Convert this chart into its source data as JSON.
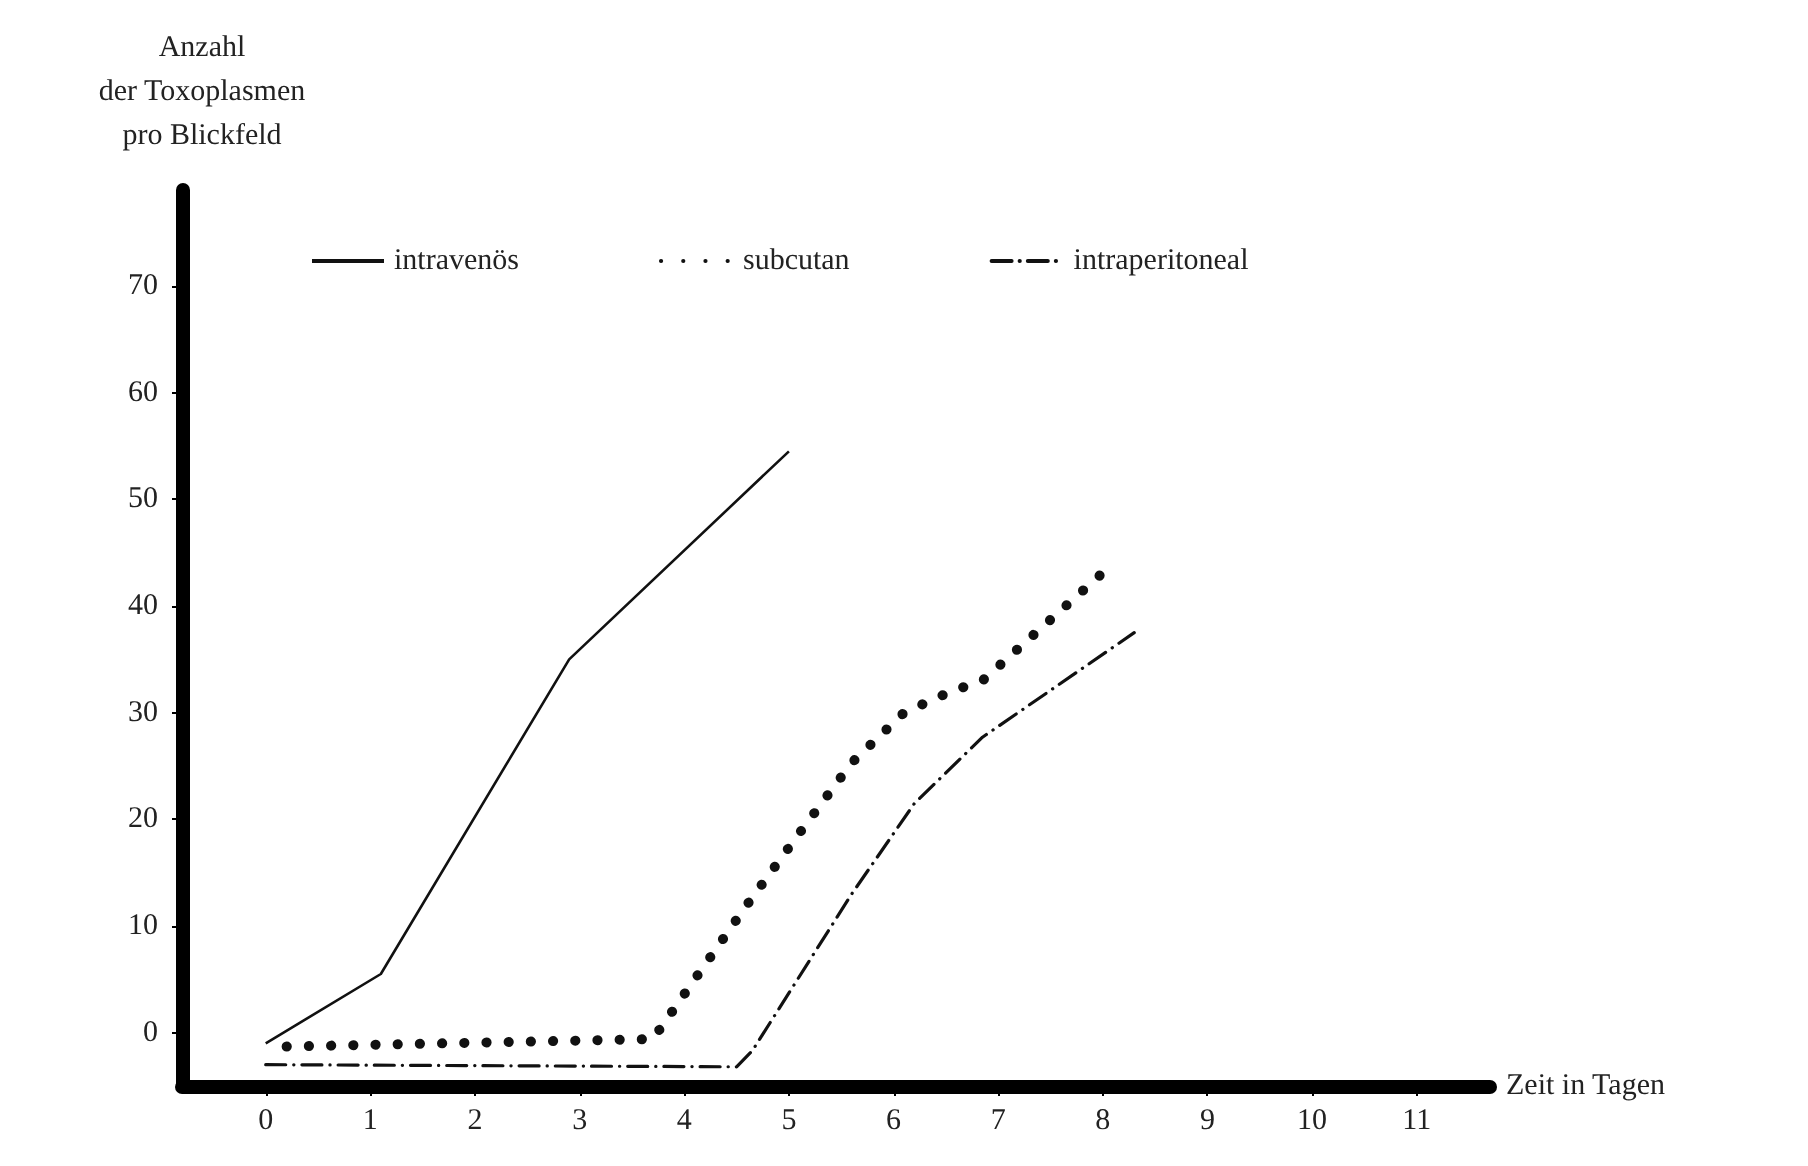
{
  "chart_data": {
    "type": "line",
    "ylabel": "Anzahl\nder Toxoplasmen\npro Blickfeld",
    "xlabel": "Zeit in Tagen",
    "xlim": [
      -0.8,
      11.7
    ],
    "xticks": [
      0,
      1,
      2,
      3,
      4,
      5,
      6,
      7,
      8,
      9,
      10,
      11
    ],
    "ylim": [
      -5,
      79
    ],
    "yticks": [
      0,
      10,
      20,
      30,
      40,
      50,
      60,
      70
    ],
    "grid": false,
    "legend": "top",
    "series": [
      {
        "name": "intravenös",
        "color": "#111111",
        "line_style": "solid",
        "x": [
          0,
          1.1,
          2.9,
          5
        ],
        "values": [
          -1,
          5.5,
          35,
          54.5
        ]
      },
      {
        "name": "subcutan",
        "color": "#111111",
        "line_style": "dotted",
        "x": [
          0.2,
          3.7,
          4.6,
          5.1,
          5.6,
          6.1,
          6.55,
          6.85,
          8.1
        ],
        "values": [
          -1.3,
          -0.6,
          12,
          18.7,
          25.3,
          30,
          32,
          33,
          44
        ]
      },
      {
        "name": "intraperitoneal",
        "color": "#111111",
        "line_style": "dashed",
        "x": [
          0,
          4.5,
          4.65,
          5.6,
          6.2,
          6.85,
          8.3
        ],
        "values": [
          -3,
          -3.2,
          -1.7,
          13,
          21.5,
          27.7,
          37.5
        ]
      }
    ]
  }
}
